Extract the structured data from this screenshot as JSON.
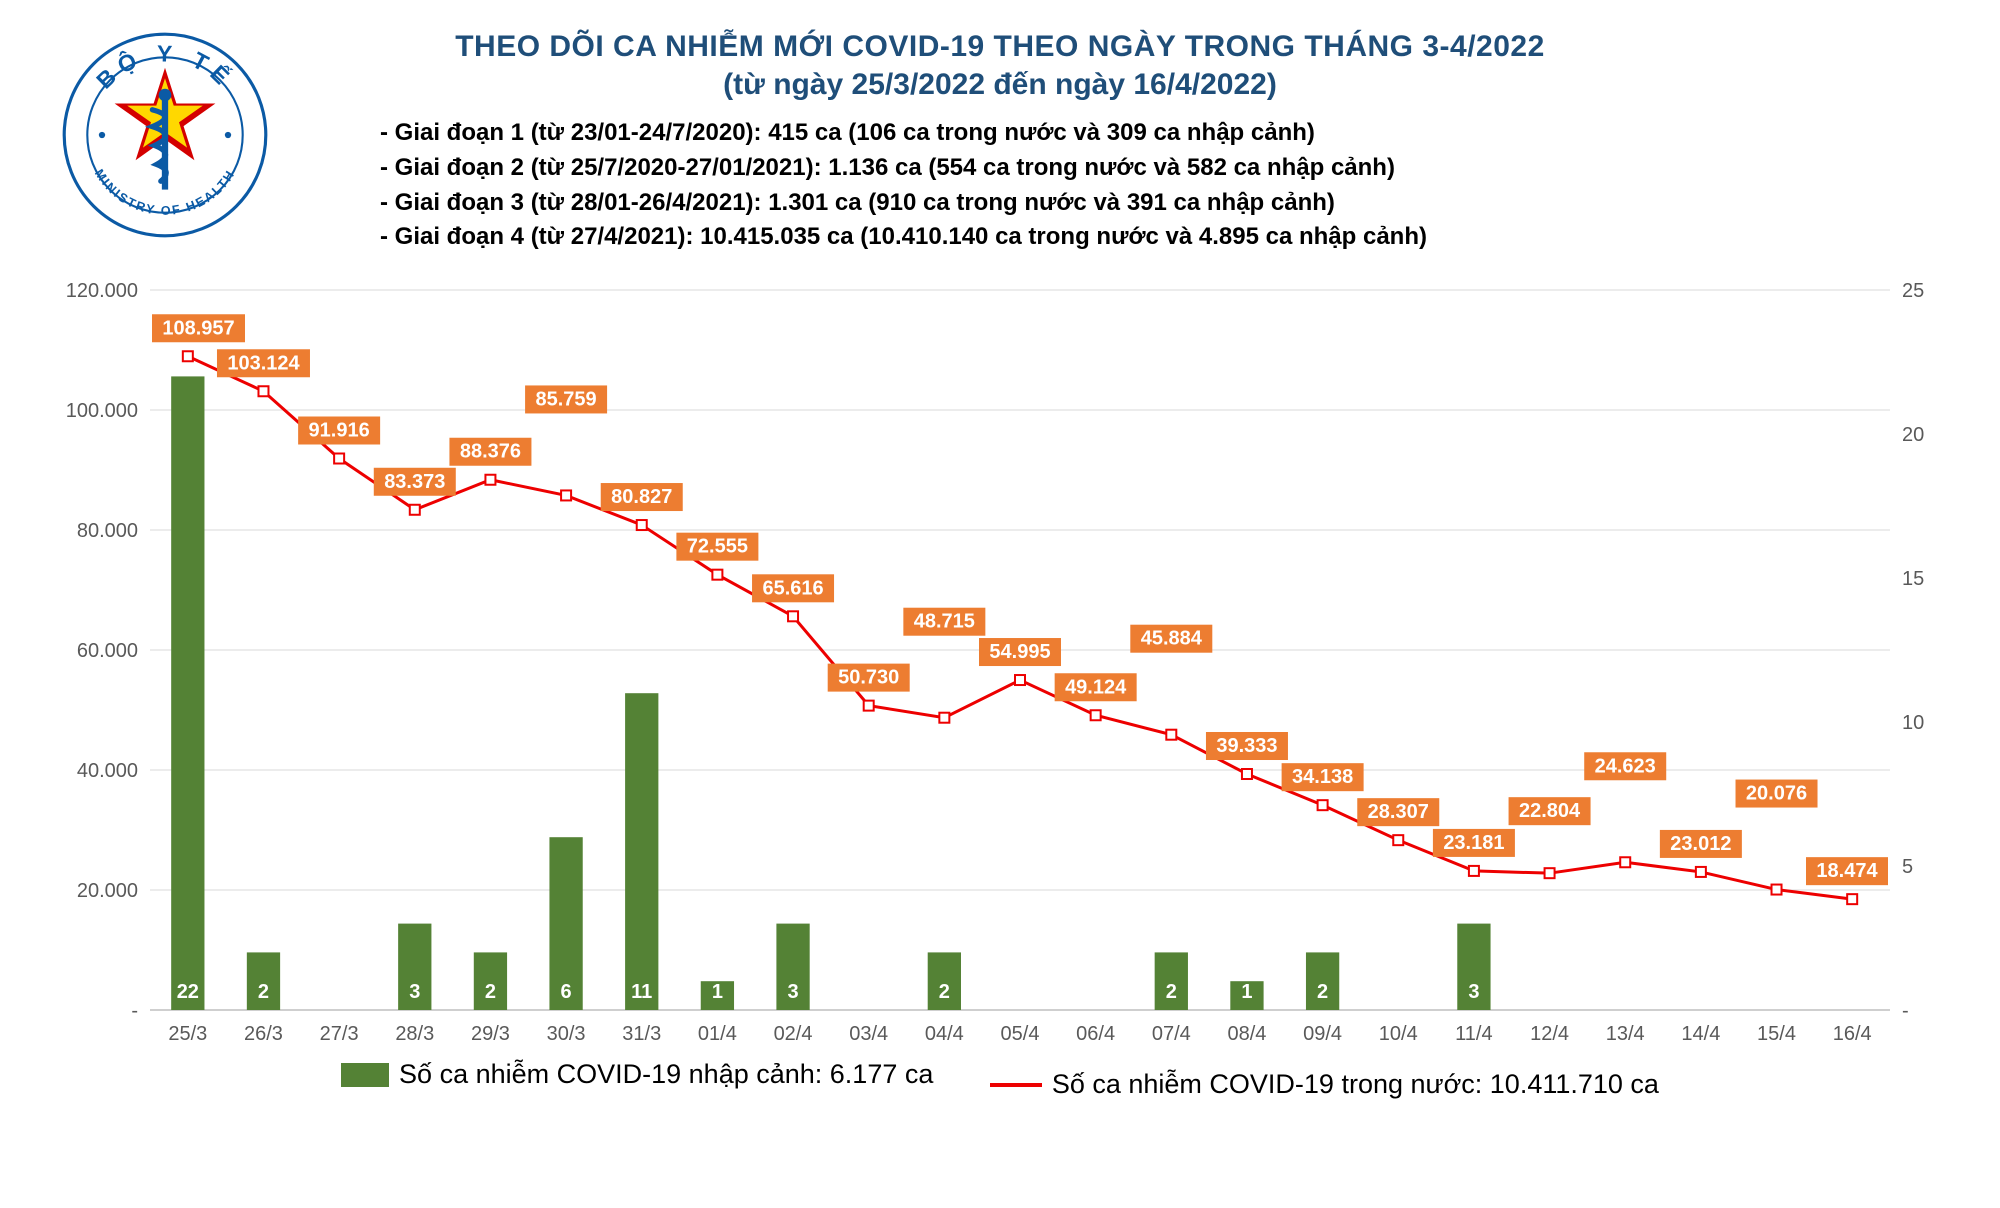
{
  "title_line1": "THEO DÕI CA NHIỄM MỚI COVID-19 THEO NGÀY TRONG THÁNG 3-4/2022",
  "title_line2": "(từ ngày 25/3/2022 đến ngày 16/4/2022)",
  "phases": [
    "- Giai đoạn 1 (từ 23/01-24/7/2020): 415 ca (106 ca trong nước và 309 ca nhập cảnh)",
    "- Giai đoạn 2 (từ 25/7/2020-27/01/2021): 1.136 ca (554 ca trong nước và 582 ca nhập cảnh)",
    "- Giai đoạn 3 (từ 28/01-26/4/2021): 1.301 ca (910 ca trong nước và 391 ca nhập cảnh)",
    "- Giai đoạn 4 (từ 27/4/2021): 10.415.035 ca (10.410.140 ca trong nước và 4.895 ca nhập cảnh)"
  ],
  "logo": {
    "outer_text_top": "BỘ Y TẾ",
    "outer_text_bottom": "MINISTRY OF HEALTH",
    "ring_color": "#0b5aa5",
    "star_bg": "#d40000",
    "star_fill": "#ffd800",
    "staff_color": "#0b5aa5"
  },
  "chart": {
    "type": "bar+line",
    "categories": [
      "25/3",
      "26/3",
      "27/3",
      "28/3",
      "29/3",
      "30/3",
      "31/3",
      "01/4",
      "02/4",
      "03/4",
      "04/4",
      "05/4",
      "06/4",
      "07/4",
      "08/4",
      "09/4",
      "10/4",
      "11/4",
      "12/4",
      "13/4",
      "14/4",
      "15/4",
      "16/4"
    ],
    "bar_series": {
      "name": "Số ca nhiễm COVID-19 nhập cảnh: 6.177 ca",
      "values": [
        22,
        2,
        0,
        3,
        2,
        6,
        11,
        1,
        3,
        0,
        2,
        0,
        0,
        2,
        1,
        2,
        0,
        3,
        0,
        0,
        0,
        0,
        0
      ],
      "labels": [
        "22",
        "2",
        "-",
        "3",
        "2",
        "6",
        "11",
        "1",
        "3",
        "-",
        "2",
        "-",
        "-",
        "2",
        "1",
        "2",
        "-",
        "3",
        "-",
        "-",
        "-",
        "-",
        "-"
      ],
      "color": "#548235",
      "axis": "right",
      "bar_width_ratio": 0.44
    },
    "line_series": {
      "name": "Số ca nhiễm COVID-19 trong nước: 10.411.710 ca",
      "values": [
        108957,
        103124,
        91916,
        83373,
        88376,
        85759,
        80827,
        72555,
        65616,
        50730,
        48715,
        54995,
        49124,
        45884,
        39333,
        34138,
        28307,
        23181,
        22804,
        24623,
        23012,
        20076,
        18474
      ],
      "labels": [
        "108.957",
        "103.124",
        "91.916",
        "83.373",
        "88.376",
        "85.759",
        "80.827",
        "72.555",
        "65.616",
        "50.730",
        "48.715",
        "54.995",
        "49.124",
        "45.884",
        "39.333",
        "34.138",
        "28.307",
        "23.181",
        "22.804",
        "24.623",
        "23.012",
        "20.076",
        "18.474"
      ],
      "color": "#ed0000",
      "label_box_fill": "#ed7d31",
      "marker_fill": "#ffffff",
      "marker_stroke": "#ed0000",
      "line_width": 3,
      "axis": "left"
    },
    "left_axis": {
      "min": 0,
      "max": 120000,
      "step": 20000,
      "tick_labels": [
        "-",
        "20.000",
        "40.000",
        "60.000",
        "80.000",
        "100.000",
        "120.000"
      ],
      "color": "#595959"
    },
    "right_axis": {
      "min": 0,
      "max": 25,
      "step": 5,
      "tick_labels": [
        "-",
        "5",
        "10",
        "15",
        "20",
        "25"
      ],
      "color": "#595959"
    },
    "plot": {
      "bg": "#ffffff",
      "grid_color": "#d9d9d9",
      "label_fontsize": 20
    }
  },
  "legend": {
    "bar_label": "Số ca nhiễm COVID-19 nhập cảnh: 6.177 ca",
    "line_label": "Số ca nhiễm COVID-19 trong nước: 10.411.710 ca"
  }
}
